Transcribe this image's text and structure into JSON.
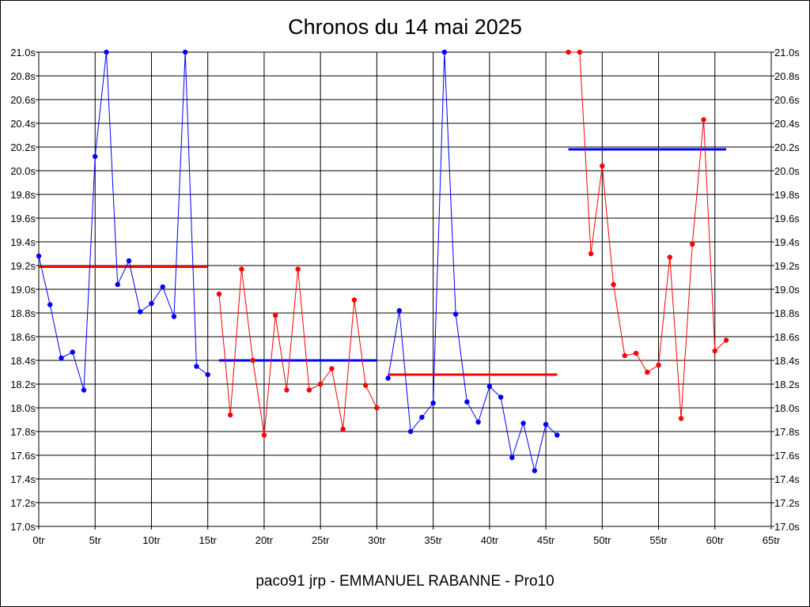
{
  "chart_data": {
    "type": "line",
    "title": "Chronos du 14 mai 2025",
    "footer": "paco91 jrp - EMMANUEL RABANNE - Pro10",
    "x_ticks": [
      "0tr",
      "5tr",
      "10tr",
      "15tr",
      "20tr",
      "25tr",
      "30tr",
      "35tr",
      "40tr",
      "45tr",
      "50tr",
      "55tr",
      "60tr",
      "65tr"
    ],
    "y_ticks": [
      "17.0s",
      "17.2s",
      "17.4s",
      "17.6s",
      "17.8s",
      "18.0s",
      "18.2s",
      "18.4s",
      "18.6s",
      "18.8s",
      "19.0s",
      "19.2s",
      "19.4s",
      "19.6s",
      "19.8s",
      "20.0s",
      "20.2s",
      "20.4s",
      "20.6s",
      "20.8s",
      "21.0s"
    ],
    "xlim": [
      0,
      65
    ],
    "ylim": [
      17.0,
      21.0
    ],
    "grid": true,
    "colors": {
      "blue": "#0000ff",
      "red": "#ff0000"
    },
    "series": [
      {
        "color": "blue",
        "x": [
          0,
          1,
          2,
          3,
          4,
          5,
          6,
          7,
          8,
          9,
          10,
          11,
          12,
          13,
          14,
          15
        ],
        "y": [
          19.28,
          18.87,
          18.42,
          18.47,
          18.15,
          20.12,
          21.0,
          19.04,
          19.24,
          18.81,
          18.88,
          19.02,
          18.77,
          21.0,
          18.35,
          18.28
        ]
      },
      {
        "color": "red",
        "x": [
          16,
          17,
          18,
          19,
          20,
          21,
          22,
          23,
          24,
          25,
          26,
          27,
          28,
          29,
          30
        ],
        "y": [
          18.96,
          17.94,
          19.17,
          18.4,
          17.77,
          18.78,
          18.15,
          19.17,
          18.15,
          18.2,
          18.33,
          17.82,
          18.91,
          18.19,
          18.0
        ]
      },
      {
        "color": "blue",
        "x": [
          31,
          32,
          33,
          34,
          35,
          36,
          37,
          38,
          39,
          40,
          41,
          42,
          43,
          44,
          45,
          46
        ],
        "y": [
          18.25,
          18.82,
          17.8,
          17.92,
          18.04,
          21.0,
          18.79,
          18.05,
          17.88,
          18.18,
          18.09,
          17.58,
          17.87,
          17.47,
          17.86,
          17.77
        ]
      },
      {
        "color": "red",
        "x": [
          47,
          48,
          49,
          50,
          51,
          52,
          53,
          54,
          55,
          56,
          57,
          58,
          59,
          60,
          61
        ],
        "y": [
          21.0,
          21.0,
          19.3,
          20.04,
          19.04,
          18.44,
          18.46,
          18.3,
          18.36,
          19.27,
          17.91,
          19.38,
          20.43,
          18.48,
          18.57
        ]
      }
    ],
    "averages": [
      {
        "color": "red",
        "x_start": 0,
        "x_end": 15,
        "y": 19.19
      },
      {
        "color": "blue",
        "x_start": 16,
        "x_end": 30,
        "y": 18.4
      },
      {
        "color": "red",
        "x_start": 31,
        "x_end": 46,
        "y": 18.28
      },
      {
        "color": "blue",
        "x_start": 47,
        "x_end": 61,
        "y": 20.18
      }
    ]
  }
}
